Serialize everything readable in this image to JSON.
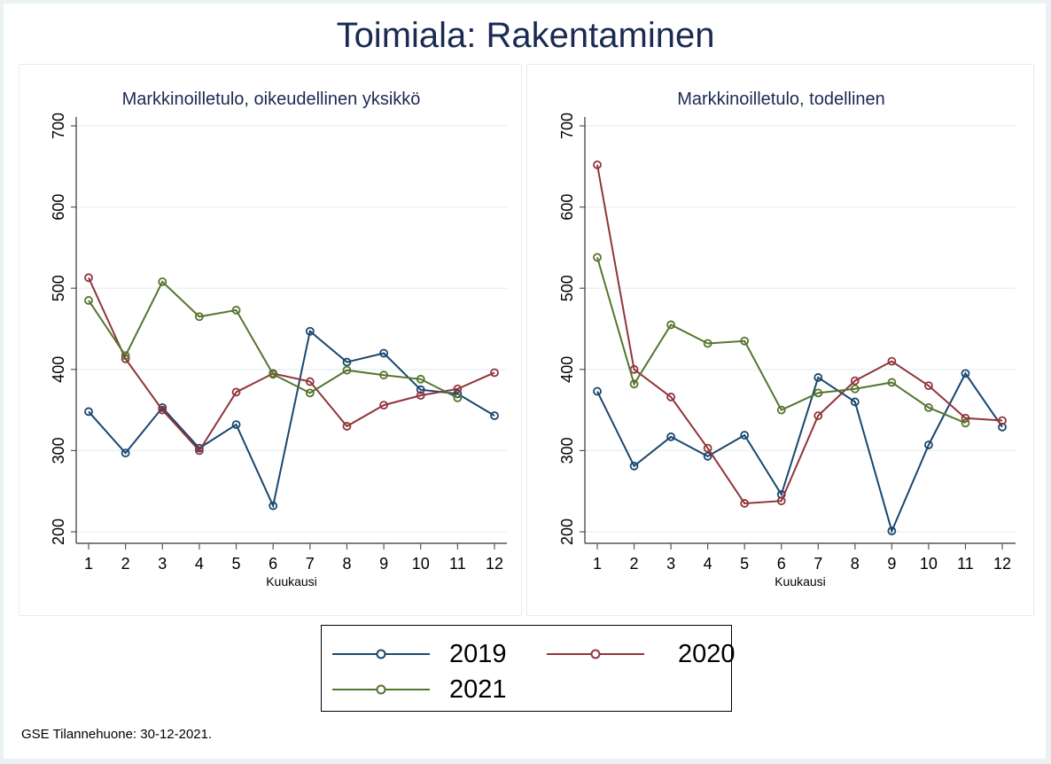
{
  "title": "Toimiala: Rakentaminen",
  "footer": "GSE Tilannehuone: 30-12-2021.",
  "legend": [
    {
      "label": "2019",
      "color": "#1a476f"
    },
    {
      "label": "2020",
      "color": "#90353b"
    },
    {
      "label": "2021",
      "color": "#55752f"
    }
  ],
  "chart_data": [
    {
      "type": "line",
      "title": "Markkinoilletulo, oikeudellinen yksikkö",
      "xlabel": "Kuukausi",
      "ylabel": "",
      "x": [
        1,
        2,
        3,
        4,
        5,
        6,
        7,
        8,
        9,
        10,
        11,
        12
      ],
      "xticks": [
        "1",
        "2",
        "3",
        "4",
        "5",
        "6",
        "7",
        "8",
        "9",
        "10",
        "11",
        "12"
      ],
      "yticks": [
        "200",
        "300",
        "400",
        "500",
        "600",
        "700"
      ],
      "ylim": [
        200,
        700
      ],
      "grid": true,
      "series": [
        {
          "name": "2019",
          "color": "#1a476f",
          "values": [
            348,
            297,
            353,
            303,
            332,
            232,
            447,
            409,
            420,
            375,
            370,
            343
          ]
        },
        {
          "name": "2020",
          "color": "#90353b",
          "values": [
            513,
            413,
            350,
            300,
            372,
            395,
            385,
            330,
            356,
            368,
            376,
            396
          ]
        },
        {
          "name": "2021",
          "color": "#55752f",
          "values": [
            485,
            417,
            508,
            465,
            473,
            394,
            371,
            399,
            393,
            388,
            365,
            null
          ]
        }
      ]
    },
    {
      "type": "line",
      "title": "Markkinoilletulo, todellinen",
      "xlabel": "Kuukausi",
      "ylabel": "",
      "x": [
        1,
        2,
        3,
        4,
        5,
        6,
        7,
        8,
        9,
        10,
        11,
        12
      ],
      "xticks": [
        "1",
        "2",
        "3",
        "4",
        "5",
        "6",
        "7",
        "8",
        "9",
        "10",
        "11",
        "12"
      ],
      "yticks": [
        "200",
        "300",
        "400",
        "500",
        "600",
        "700"
      ],
      "ylim": [
        200,
        700
      ],
      "grid": true,
      "series": [
        {
          "name": "2019",
          "color": "#1a476f",
          "values": [
            373,
            281,
            317,
            293,
            319,
            246,
            390,
            360,
            201,
            307,
            395,
            329
          ]
        },
        {
          "name": "2020",
          "color": "#90353b",
          "values": [
            652,
            400,
            366,
            303,
            235,
            238,
            343,
            386,
            410,
            380,
            340,
            337
          ]
        },
        {
          "name": "2021",
          "color": "#55752f",
          "values": [
            538,
            382,
            455,
            432,
            435,
            350,
            371,
            376,
            384,
            353,
            334,
            null
          ]
        }
      ]
    }
  ]
}
